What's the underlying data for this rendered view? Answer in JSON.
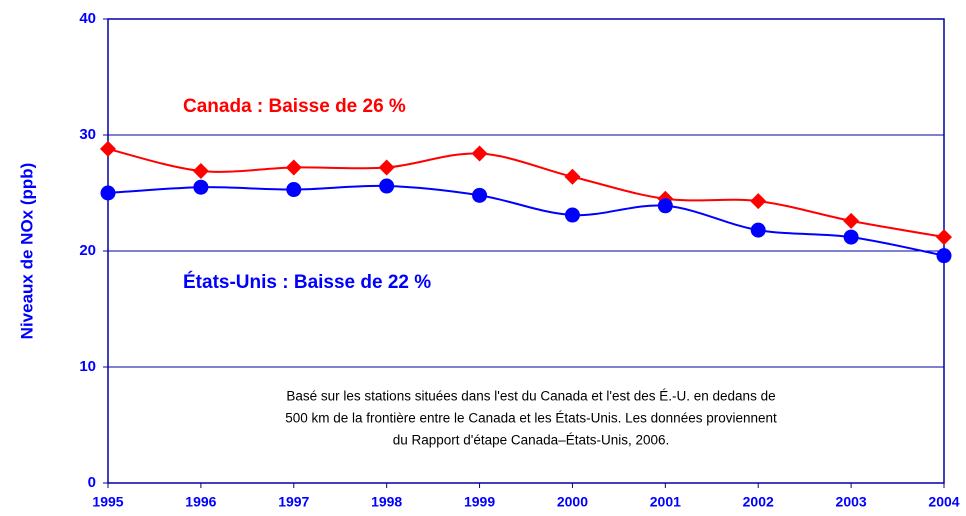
{
  "chart_data": {
    "type": "line",
    "y_label": "Niveaux de NOx (ppb)",
    "categories": [
      "1995",
      "1996",
      "1997",
      "1998",
      "1999",
      "2000",
      "2001",
      "2002",
      "2003",
      "2004"
    ],
    "series": [
      {
        "name": "Canada :  Baisse de 26 %",
        "color": "#ff0000",
        "marker": "diamond",
        "values": [
          28.8,
          26.9,
          27.2,
          27.2,
          28.4,
          26.4,
          24.5,
          24.3,
          22.6,
          21.2
        ]
      },
      {
        "name": "États-Unis :  Baisse de 22 %",
        "color": "#0000ff",
        "marker": "circle",
        "values": [
          25.0,
          25.5,
          25.3,
          25.6,
          24.8,
          23.1,
          23.9,
          21.8,
          21.2,
          19.6
        ]
      }
    ],
    "ylim": [
      0,
      40
    ],
    "yticks": [
      0,
      10,
      20,
      30,
      40
    ],
    "grid": true,
    "annotation": [
      "Basé sur les stations situées dans l'est du Canada et l'est des É.-U. en dedans de",
      "500 km de la frontière entre le Canada et les États-Unis.  Les données proviennent",
      "du Rapport d'étape Canada–États-Unis, 2006."
    ]
  }
}
